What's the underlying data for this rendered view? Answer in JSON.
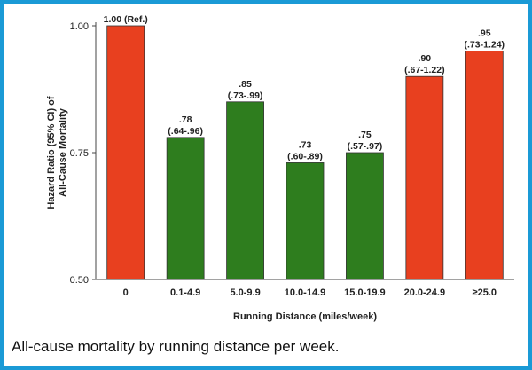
{
  "chart_data": {
    "type": "bar",
    "categories": [
      "0",
      "0.1-4.9",
      "5.0-9.9",
      "10.0-14.9",
      "15.0-19.9",
      "20.0-24.9",
      "≥25.0"
    ],
    "values": [
      1.0,
      0.78,
      0.85,
      0.73,
      0.75,
      0.9,
      0.95
    ],
    "data_labels": [
      [
        "1.00 (Ref.)"
      ],
      [
        ".78",
        "(.64-.96)"
      ],
      [
        ".85",
        "(.73-.99)"
      ],
      [
        ".73",
        "(.60-.89)"
      ],
      [
        ".75",
        "(.57-.97)"
      ],
      [
        ".90",
        "(.67-1.22)"
      ],
      [
        ".95",
        "(.73-1.24)"
      ]
    ],
    "bar_colors": [
      "#e8401f",
      "#2e7d1e",
      "#2e7d1e",
      "#2e7d1e",
      "#2e7d1e",
      "#e8401f",
      "#e8401f"
    ],
    "xlabel": "Running Distance (miles/week)",
    "ylabel": [
      "Hazard Ratio (95% CI) of",
      "All-Cause Mortality"
    ],
    "ylim": [
      0.5,
      1.0
    ],
    "yticks": [
      0.5,
      0.75,
      1.0
    ],
    "ytick_labels": [
      "0.50",
      "0.75",
      "1.00"
    ],
    "grid": false,
    "title": ""
  },
  "caption": "All-cause mortality by running distance per week."
}
